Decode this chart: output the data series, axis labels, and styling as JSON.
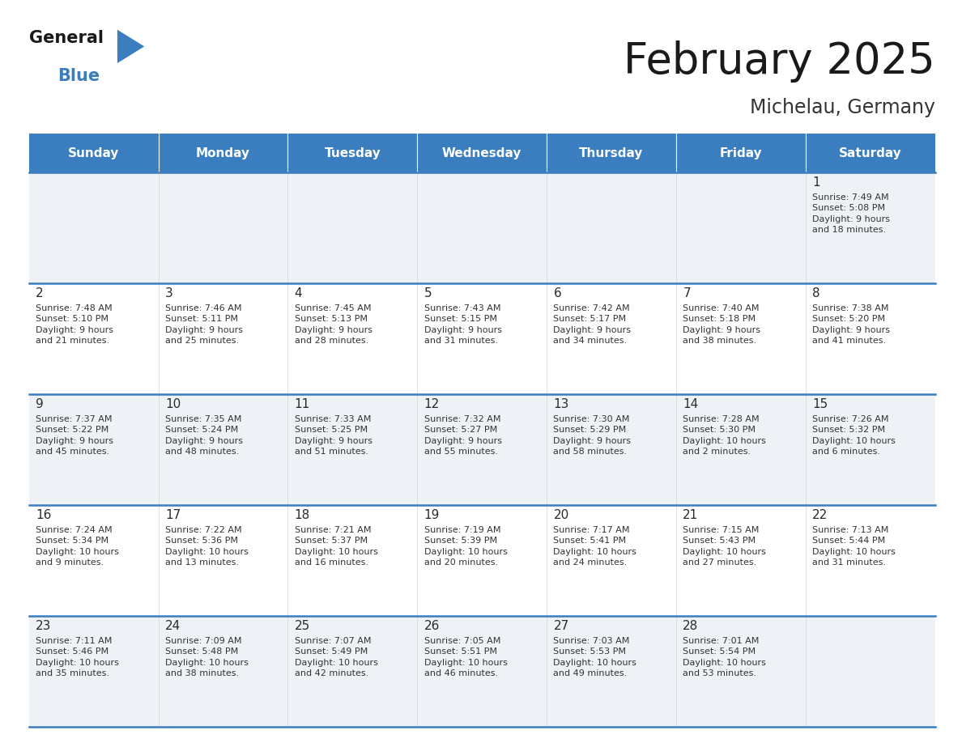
{
  "title": "February 2025",
  "subtitle": "Michelau, Germany",
  "days_of_week": [
    "Sunday",
    "Monday",
    "Tuesday",
    "Wednesday",
    "Thursday",
    "Friday",
    "Saturday"
  ],
  "header_bg": "#3a7ebf",
  "header_text": "#ffffff",
  "cell_bg_odd": "#eef2f7",
  "cell_bg_even": "#ffffff",
  "day_number_color": "#2a2a2a",
  "info_text_color": "#333333",
  "border_color": "#3a7ebf",
  "title_color": "#1a1a1a",
  "subtitle_color": "#333333",
  "logo_general_color": "#1a1a1a",
  "logo_blue_color": "#3a7ebf",
  "logo_triangle_color": "#3a7ebf",
  "calendar_data": [
    [
      null,
      null,
      null,
      null,
      null,
      null,
      {
        "day": 1,
        "sunrise": "7:49 AM",
        "sunset": "5:08 PM",
        "daylight": "9 hours\nand 18 minutes."
      }
    ],
    [
      {
        "day": 2,
        "sunrise": "7:48 AM",
        "sunset": "5:10 PM",
        "daylight": "9 hours\nand 21 minutes."
      },
      {
        "day": 3,
        "sunrise": "7:46 AM",
        "sunset": "5:11 PM",
        "daylight": "9 hours\nand 25 minutes."
      },
      {
        "day": 4,
        "sunrise": "7:45 AM",
        "sunset": "5:13 PM",
        "daylight": "9 hours\nand 28 minutes."
      },
      {
        "day": 5,
        "sunrise": "7:43 AM",
        "sunset": "5:15 PM",
        "daylight": "9 hours\nand 31 minutes."
      },
      {
        "day": 6,
        "sunrise": "7:42 AM",
        "sunset": "5:17 PM",
        "daylight": "9 hours\nand 34 minutes."
      },
      {
        "day": 7,
        "sunrise": "7:40 AM",
        "sunset": "5:18 PM",
        "daylight": "9 hours\nand 38 minutes."
      },
      {
        "day": 8,
        "sunrise": "7:38 AM",
        "sunset": "5:20 PM",
        "daylight": "9 hours\nand 41 minutes."
      }
    ],
    [
      {
        "day": 9,
        "sunrise": "7:37 AM",
        "sunset": "5:22 PM",
        "daylight": "9 hours\nand 45 minutes."
      },
      {
        "day": 10,
        "sunrise": "7:35 AM",
        "sunset": "5:24 PM",
        "daylight": "9 hours\nand 48 minutes."
      },
      {
        "day": 11,
        "sunrise": "7:33 AM",
        "sunset": "5:25 PM",
        "daylight": "9 hours\nand 51 minutes."
      },
      {
        "day": 12,
        "sunrise": "7:32 AM",
        "sunset": "5:27 PM",
        "daylight": "9 hours\nand 55 minutes."
      },
      {
        "day": 13,
        "sunrise": "7:30 AM",
        "sunset": "5:29 PM",
        "daylight": "9 hours\nand 58 minutes."
      },
      {
        "day": 14,
        "sunrise": "7:28 AM",
        "sunset": "5:30 PM",
        "daylight": "10 hours\nand 2 minutes."
      },
      {
        "day": 15,
        "sunrise": "7:26 AM",
        "sunset": "5:32 PM",
        "daylight": "10 hours\nand 6 minutes."
      }
    ],
    [
      {
        "day": 16,
        "sunrise": "7:24 AM",
        "sunset": "5:34 PM",
        "daylight": "10 hours\nand 9 minutes."
      },
      {
        "day": 17,
        "sunrise": "7:22 AM",
        "sunset": "5:36 PM",
        "daylight": "10 hours\nand 13 minutes."
      },
      {
        "day": 18,
        "sunrise": "7:21 AM",
        "sunset": "5:37 PM",
        "daylight": "10 hours\nand 16 minutes."
      },
      {
        "day": 19,
        "sunrise": "7:19 AM",
        "sunset": "5:39 PM",
        "daylight": "10 hours\nand 20 minutes."
      },
      {
        "day": 20,
        "sunrise": "7:17 AM",
        "sunset": "5:41 PM",
        "daylight": "10 hours\nand 24 minutes."
      },
      {
        "day": 21,
        "sunrise": "7:15 AM",
        "sunset": "5:43 PM",
        "daylight": "10 hours\nand 27 minutes."
      },
      {
        "day": 22,
        "sunrise": "7:13 AM",
        "sunset": "5:44 PM",
        "daylight": "10 hours\nand 31 minutes."
      }
    ],
    [
      {
        "day": 23,
        "sunrise": "7:11 AM",
        "sunset": "5:46 PM",
        "daylight": "10 hours\nand 35 minutes."
      },
      {
        "day": 24,
        "sunrise": "7:09 AM",
        "sunset": "5:48 PM",
        "daylight": "10 hours\nand 38 minutes."
      },
      {
        "day": 25,
        "sunrise": "7:07 AM",
        "sunset": "5:49 PM",
        "daylight": "10 hours\nand 42 minutes."
      },
      {
        "day": 26,
        "sunrise": "7:05 AM",
        "sunset": "5:51 PM",
        "daylight": "10 hours\nand 46 minutes."
      },
      {
        "day": 27,
        "sunrise": "7:03 AM",
        "sunset": "5:53 PM",
        "daylight": "10 hours\nand 49 minutes."
      },
      {
        "day": 28,
        "sunrise": "7:01 AM",
        "sunset": "5:54 PM",
        "daylight": "10 hours\nand 53 minutes."
      },
      null
    ]
  ]
}
